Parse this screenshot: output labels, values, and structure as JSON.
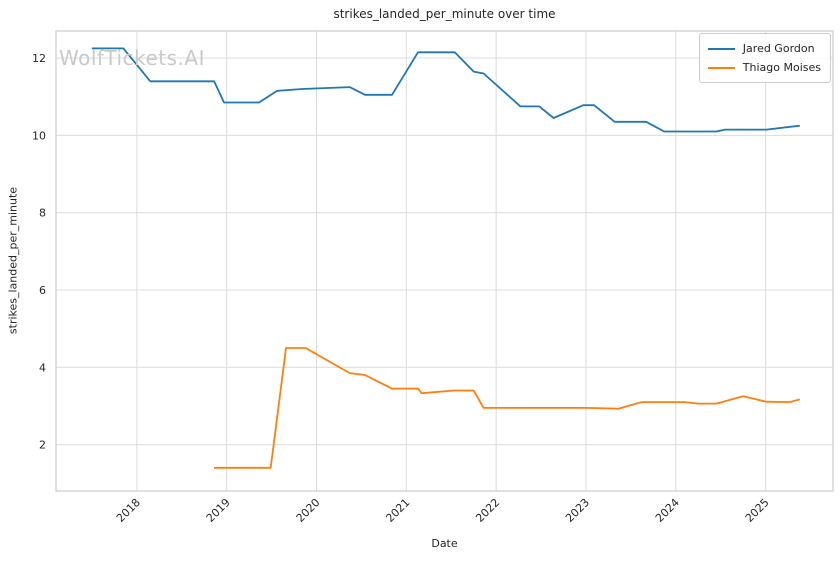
{
  "chart": {
    "title": "strikes_landed_per_minute over time",
    "watermark": "WolfTickets.AI",
    "xlabel": "Date",
    "ylabel": "strikes_landed_per_minute"
  },
  "legend": {
    "items": [
      {
        "label": "Jared Gordon",
        "color": "#1f77b4"
      },
      {
        "label": "Thiago Moises",
        "color": "#ff7f0e"
      }
    ]
  },
  "colors": {
    "series_blue": "#1f77b4",
    "series_orange": "#ff7f0e",
    "gridline": "#dcdcdc",
    "spine": "#cccccc",
    "text": "#262626",
    "watermark": "#c9c9c9"
  },
  "chart_data": {
    "type": "line",
    "title": "strikes_landed_per_minute over time",
    "xlabel": "Date",
    "ylabel": "strikes_landed_per_minute",
    "grid": true,
    "legend_position": "upper right",
    "xlim": [
      2017.1,
      2025.75
    ],
    "ylim": [
      0.8,
      12.7
    ],
    "x_ticks": [
      "2018",
      "2019",
      "2020",
      "2021",
      "2022",
      "2023",
      "2024",
      "2025"
    ],
    "x_tick_values": [
      2018,
      2019,
      2020,
      2021,
      2022,
      2023,
      2024,
      2025
    ],
    "y_ticks": [
      "2",
      "4",
      "6",
      "8",
      "10",
      "12"
    ],
    "y_tick_values": [
      2,
      4,
      6,
      8,
      10,
      12
    ],
    "series": [
      {
        "name": "Jared Gordon",
        "color": "#1f77b4",
        "points": [
          [
            2017.5,
            12.25
          ],
          [
            2017.85,
            12.25
          ],
          [
            2018.15,
            11.4
          ],
          [
            2018.86,
            11.4
          ],
          [
            2018.97,
            10.85
          ],
          [
            2019.36,
            10.85
          ],
          [
            2019.56,
            11.15
          ],
          [
            2019.84,
            11.2
          ],
          [
            2020.37,
            11.25
          ],
          [
            2020.54,
            11.05
          ],
          [
            2020.84,
            11.05
          ],
          [
            2021.13,
            12.15
          ],
          [
            2021.54,
            12.15
          ],
          [
            2021.75,
            11.65
          ],
          [
            2021.86,
            11.6
          ],
          [
            2022.27,
            10.75
          ],
          [
            2022.48,
            10.75
          ],
          [
            2022.64,
            10.45
          ],
          [
            2022.97,
            10.78
          ],
          [
            2023.09,
            10.78
          ],
          [
            2023.32,
            10.35
          ],
          [
            2023.67,
            10.35
          ],
          [
            2023.87,
            10.1
          ],
          [
            2024.45,
            10.1
          ],
          [
            2024.55,
            10.15
          ],
          [
            2025.01,
            10.15
          ],
          [
            2025.38,
            10.25
          ]
        ]
      },
      {
        "name": "Thiago Moises",
        "color": "#ff7f0e",
        "points": [
          [
            2018.86,
            1.4
          ],
          [
            2019.49,
            1.4
          ],
          [
            2019.66,
            4.5
          ],
          [
            2019.88,
            4.5
          ],
          [
            2020.37,
            3.85
          ],
          [
            2020.54,
            3.8
          ],
          [
            2020.84,
            3.45
          ],
          [
            2021.13,
            3.45
          ],
          [
            2021.17,
            3.33
          ],
          [
            2021.54,
            3.4
          ],
          [
            2021.75,
            3.4
          ],
          [
            2021.86,
            2.95
          ],
          [
            2022.5,
            2.95
          ],
          [
            2023.0,
            2.95
          ],
          [
            2023.36,
            2.93
          ],
          [
            2023.62,
            3.1
          ],
          [
            2024.1,
            3.1
          ],
          [
            2024.25,
            3.06
          ],
          [
            2024.45,
            3.06
          ],
          [
            2024.75,
            3.25
          ],
          [
            2025.01,
            3.11
          ],
          [
            2025.27,
            3.1
          ],
          [
            2025.38,
            3.17
          ]
        ]
      }
    ]
  }
}
